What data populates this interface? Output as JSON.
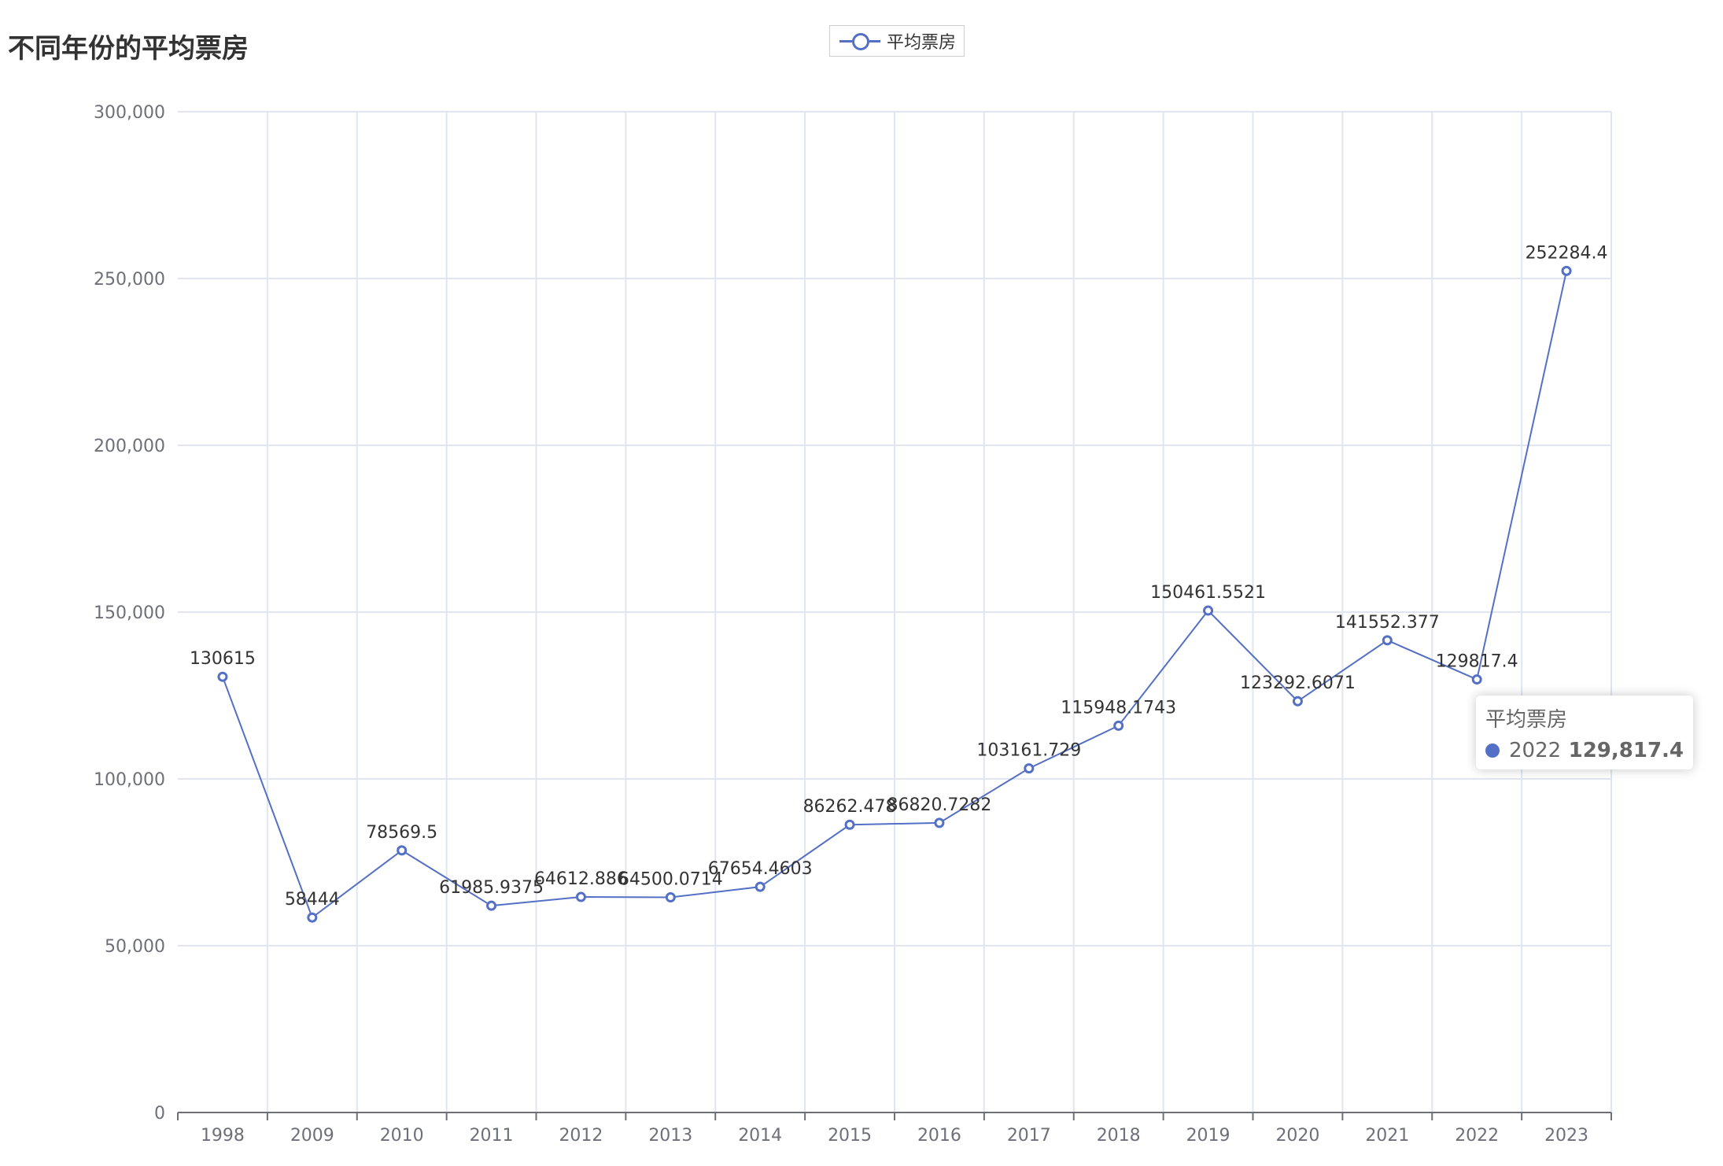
{
  "chart_data": {
    "type": "line",
    "title": "不同年份的平均票房",
    "categories": [
      "1998",
      "2009",
      "2010",
      "2011",
      "2012",
      "2013",
      "2014",
      "2015",
      "2016",
      "2017",
      "2018",
      "2019",
      "2020",
      "2021",
      "2022",
      "2023"
    ],
    "series": [
      {
        "name": "平均票房",
        "values": [
          130615,
          58444,
          78569.5,
          61985.9375,
          64612.886,
          64500.0714,
          67654.4603,
          86262.478,
          86820.7282,
          103161.729,
          115948.1743,
          150461.5521,
          123292.6071,
          141552.377,
          129817.4,
          252284.4
        ],
        "labels": [
          "130615",
          "58444",
          "78569.5",
          "61985.9375",
          "64612.886",
          "64500.0714",
          "67654.4603",
          "86262.478",
          "86820.7282",
          "103161.729",
          "115948.1743",
          "150461.5521",
          "123292.6071",
          "141552.377",
          "129817.4",
          "252284.4"
        ]
      }
    ],
    "ylim": [
      0,
      300000
    ],
    "yticks": [
      "0",
      "50,000",
      "100,000",
      "150,000",
      "200,000",
      "250,000",
      "300,000"
    ],
    "ytick_values": [
      0,
      50000,
      100000,
      150000,
      200000,
      250000,
      300000
    ],
    "grid": true,
    "legend_position": "top-center"
  },
  "legend": {
    "label": "平均票房"
  },
  "colors": {
    "series": "#5470c6",
    "grid": "#e0e6f1",
    "axis": "#6e7079",
    "label": "#333333"
  },
  "tooltip": {
    "title": "平均票房",
    "name": "2022",
    "value": "129,817.4"
  }
}
